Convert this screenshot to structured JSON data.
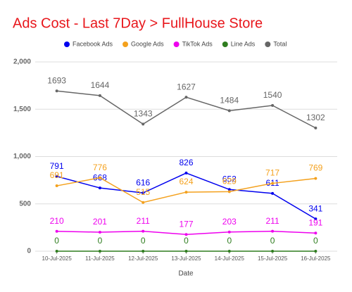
{
  "chart_data": {
    "type": "line",
    "title": "Ads Cost - Last 7Day > FullHouse Store",
    "x_label": "Date",
    "categories": [
      "10-Jul-2025",
      "11-Jul-2025",
      "12-Jul-2025",
      "13-Jul-2025",
      "14-Jul-2025",
      "15-Jul-2025",
      "16-Jul-2025"
    ],
    "series": [
      {
        "name": "Facebook Ads",
        "color": "#0000ee",
        "values": [
          791,
          668,
          616,
          826,
          652,
          611,
          341
        ]
      },
      {
        "name": "Google Ads",
        "color": "#f4a11d",
        "values": [
          691,
          776,
          515,
          624,
          629,
          717,
          769
        ]
      },
      {
        "name": "TikTok Ads",
        "color": "#ee00ee",
        "values": [
          210,
          201,
          211,
          177,
          203,
          211,
          191
        ]
      },
      {
        "name": "Line Ads",
        "color": "#2f7d1f",
        "values": [
          0,
          0,
          0,
          0,
          0,
          0,
          0
        ]
      },
      {
        "name": "Total",
        "color": "#666666",
        "values": [
          1693,
          1644,
          1343,
          1627,
          1484,
          1540,
          1302
        ]
      }
    ],
    "ylim": [
      0,
      2000
    ],
    "yticks": [
      0,
      500,
      {
        "value": 1000,
        "label": "1,000"
      },
      {
        "value": 1500,
        "label": "1,500"
      },
      {
        "value": 2000,
        "label": "2,000"
      }
    ],
    "grid": true
  }
}
